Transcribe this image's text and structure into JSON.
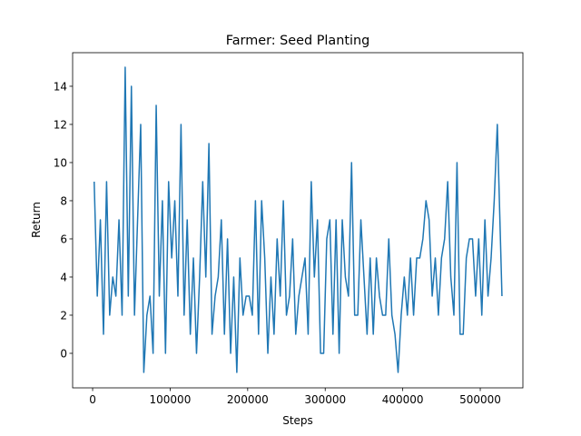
{
  "chart_data": {
    "type": "line",
    "title": "Farmer: Seed Planting",
    "x_label": "Steps",
    "y_label": "Return",
    "x": [
      2000,
      6000,
      10000,
      14000,
      18000,
      22000,
      26000,
      30000,
      34000,
      38000,
      42000,
      46000,
      50000,
      54000,
      58000,
      62000,
      66000,
      70000,
      74000,
      78000,
      82000,
      86000,
      90000,
      94000,
      98000,
      102000,
      106000,
      110000,
      114000,
      118000,
      122000,
      126000,
      130000,
      134000,
      138000,
      142000,
      146000,
      150000,
      154000,
      158000,
      162000,
      166000,
      170000,
      174000,
      178000,
      182000,
      186000,
      190000,
      194000,
      198000,
      202000,
      206000,
      210000,
      214000,
      218000,
      222000,
      226000,
      230000,
      234000,
      238000,
      242000,
      246000,
      250000,
      254000,
      258000,
      262000,
      266000,
      270000,
      274000,
      278000,
      282000,
      286000,
      290000,
      294000,
      298000,
      302000,
      306000,
      310000,
      314000,
      318000,
      322000,
      326000,
      330000,
      334000,
      338000,
      342000,
      346000,
      350000,
      354000,
      358000,
      362000,
      366000,
      370000,
      374000,
      378000,
      382000,
      386000,
      390000,
      394000,
      398000,
      402000,
      406000,
      410000,
      414000,
      418000,
      422000,
      426000,
      430000,
      434000,
      438000,
      442000,
      446000,
      450000,
      454000,
      458000,
      462000,
      466000,
      470000,
      474000,
      478000,
      482000,
      486000,
      490000,
      494000,
      498000,
      502000,
      506000,
      510000,
      514000,
      518000,
      522000,
      528000
    ],
    "series": [
      {
        "name": "Return",
        "color": "#1f77b4",
        "values": [
          9,
          3,
          7,
          1,
          9,
          2,
          4,
          3,
          7,
          2,
          15,
          3,
          14,
          2,
          7,
          12,
          -1,
          2,
          3,
          0,
          13,
          3,
          8,
          0,
          9,
          5,
          8,
          3,
          12,
          2,
          7,
          1,
          5,
          0,
          4,
          9,
          4,
          11,
          1,
          3,
          4,
          7,
          1,
          6,
          0,
          4,
          -1,
          5,
          2,
          3,
          3,
          2,
          8,
          1,
          8,
          5,
          0,
          4,
          1,
          6,
          3,
          8,
          2,
          3,
          6,
          1,
          3,
          4,
          5,
          1,
          9,
          4,
          7,
          0,
          0,
          6,
          7,
          1,
          7,
          0,
          7,
          4,
          3,
          10,
          2,
          2,
          7,
          4,
          1,
          5,
          1,
          5,
          3,
          2,
          2,
          6,
          2,
          1,
          -1,
          2,
          4,
          2,
          5,
          2,
          5,
          5,
          6,
          8,
          7,
          3,
          5,
          2,
          5,
          6,
          9,
          4,
          2,
          10,
          1,
          1,
          5,
          6,
          6,
          3,
          6,
          2,
          7,
          3,
          5,
          8,
          12,
          3
        ]
      }
    ],
    "xlim": [
      -25800,
      555000
    ],
    "ylim": [
      -1.81,
      15.76
    ],
    "xticks": [
      0,
      100000,
      200000,
      300000,
      400000,
      500000
    ],
    "yticks": [
      0,
      2,
      4,
      6,
      8,
      10,
      12,
      14
    ]
  }
}
